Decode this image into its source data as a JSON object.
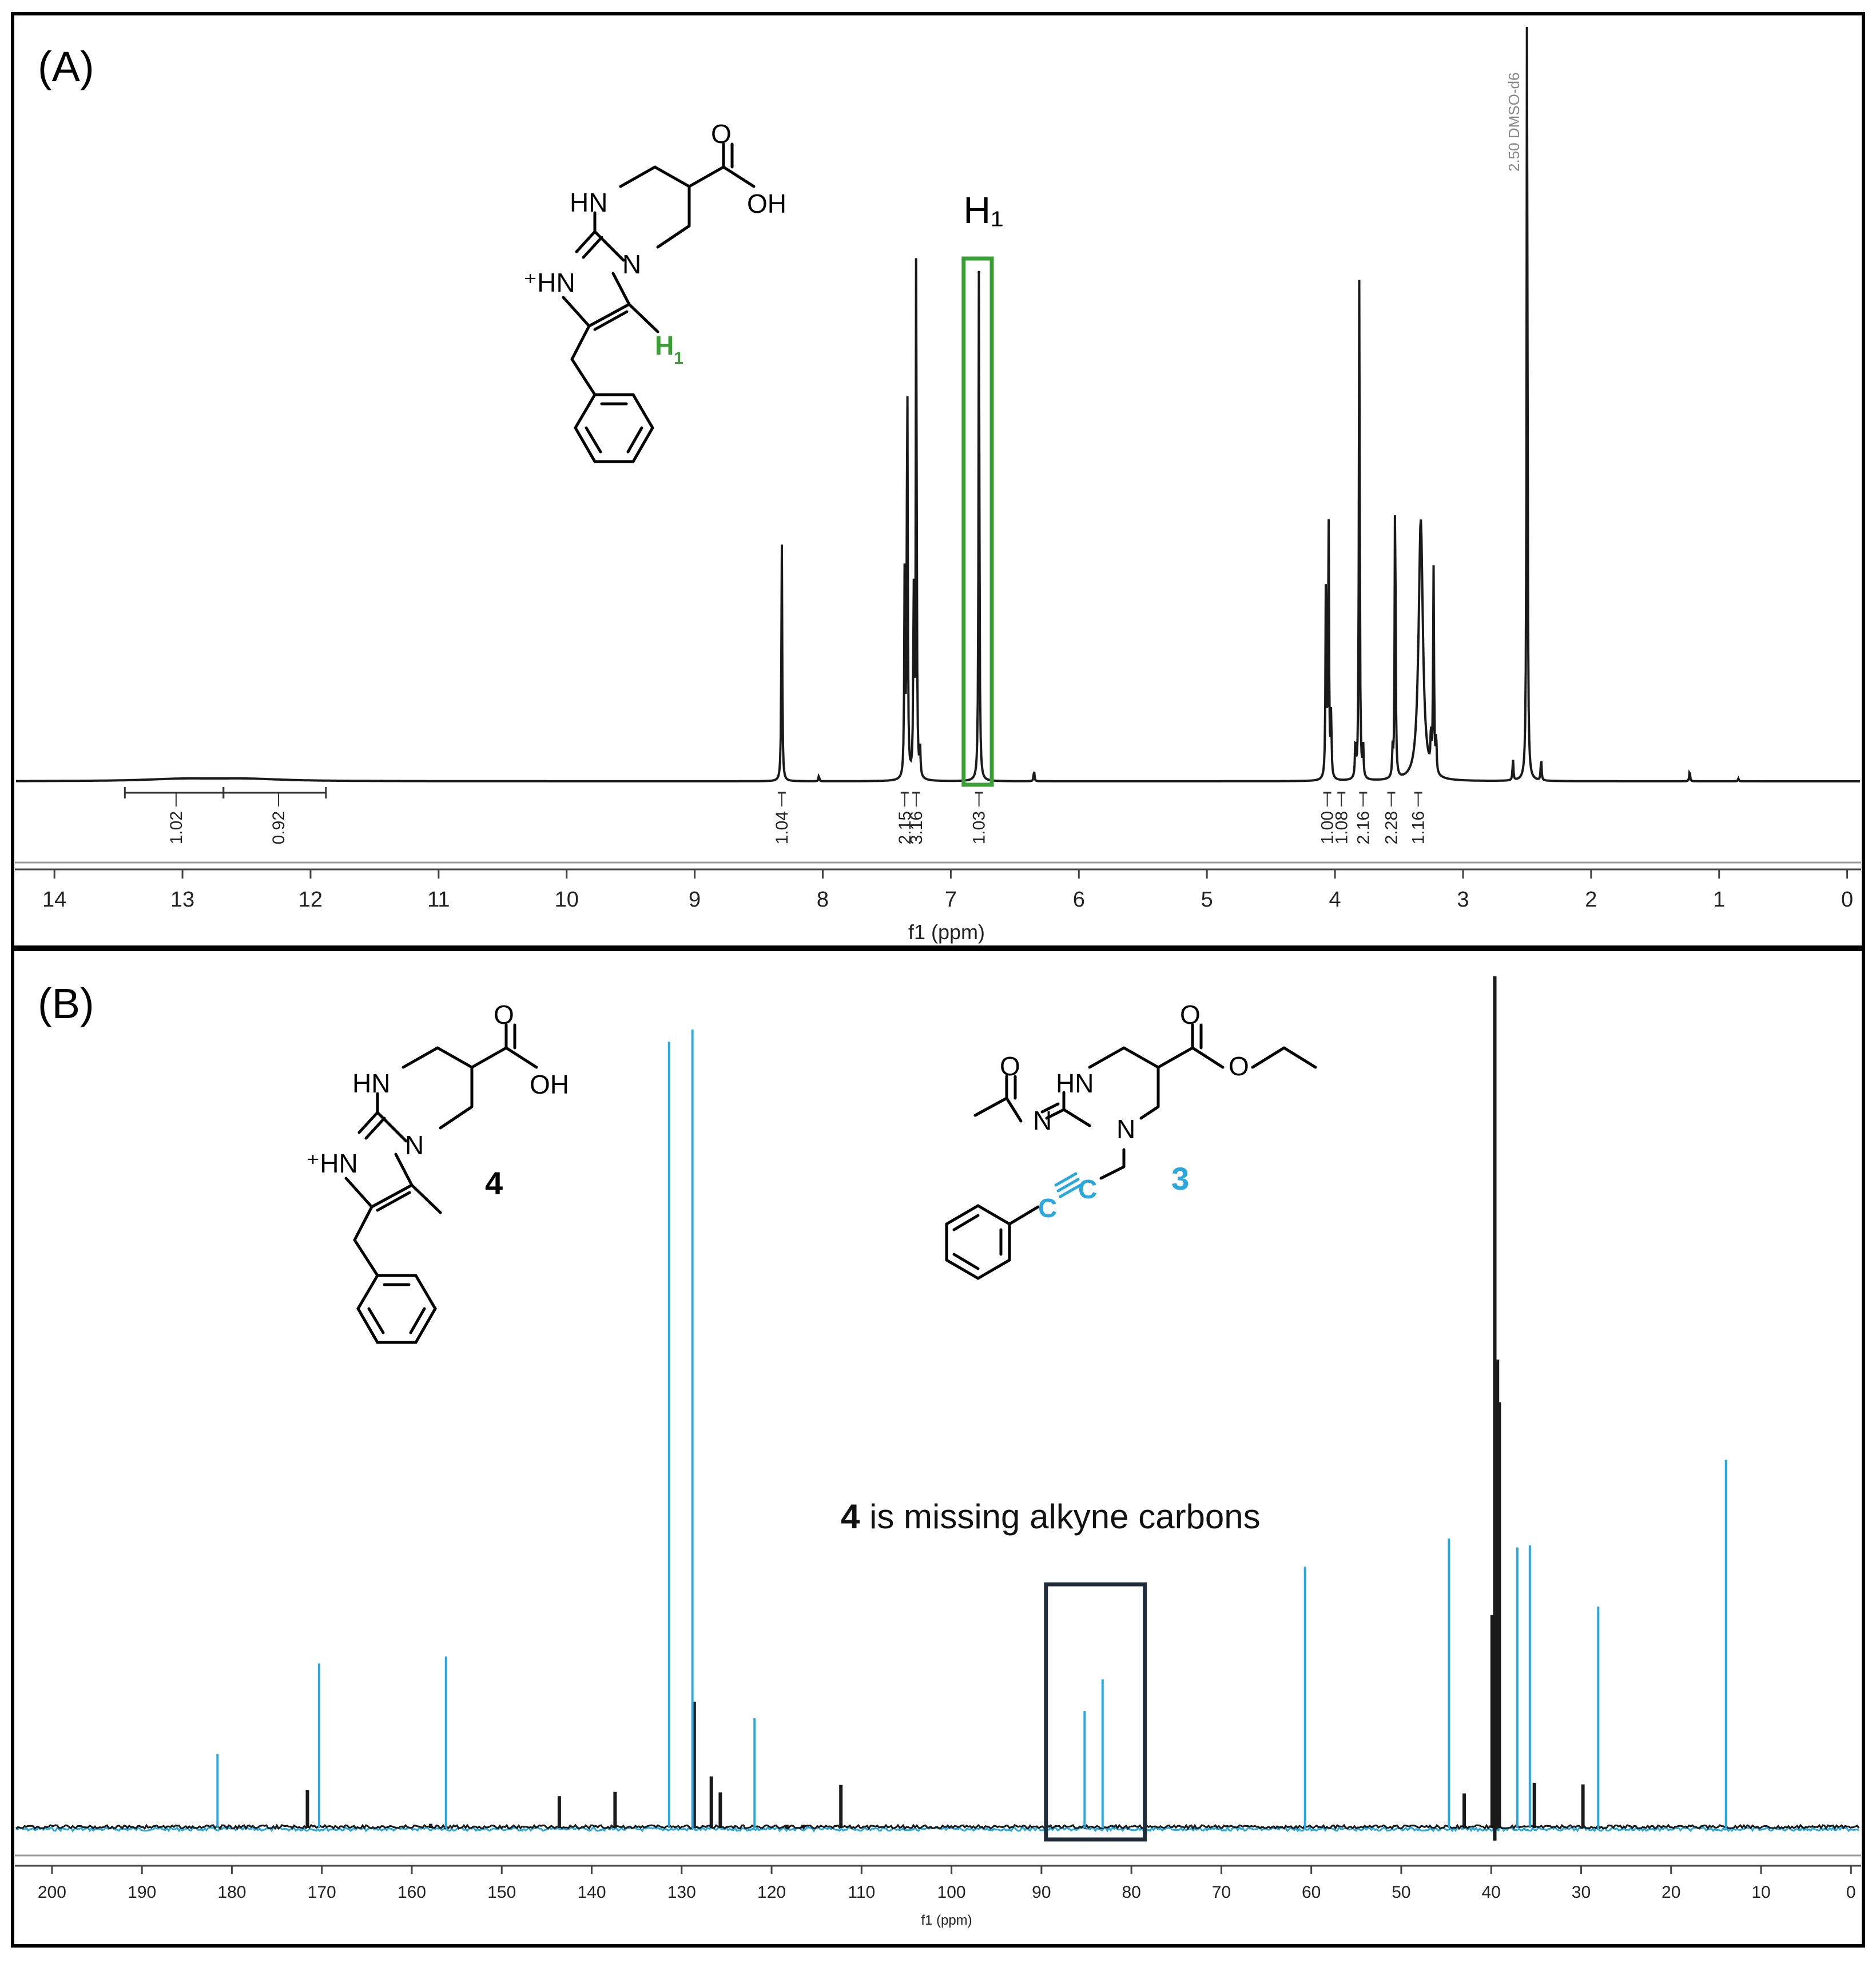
{
  "figure": {
    "panel_a_label": "(A)",
    "panel_b_label": "(B)"
  },
  "colors": {
    "spectrum_black": "#1a1a1a",
    "compound3_blue": "#29a8e0",
    "highlight_green": "#3aa035",
    "box_dark": "#1f2d3a",
    "frame": "#000000"
  },
  "chart_data": [
    {
      "type": "line",
      "id": "A",
      "xlabel": "f1 (ppm)",
      "xlim": [
        14.3,
        -0.1
      ],
      "reversed": true,
      "ticks": [
        "14",
        "13",
        "12",
        "11",
        "10",
        "9",
        "8",
        "7",
        "6",
        "5",
        "4",
        "3",
        "2",
        "1",
        "0"
      ],
      "solvent_label": "2.50 DMSO-d6",
      "peaks": [
        {
          "x": 13.0,
          "y": 0.004,
          "w": 0.35
        },
        {
          "x": 12.5,
          "y": 0.004,
          "w": 0.35
        },
        {
          "x": 8.32,
          "y": 0.45
        },
        {
          "x": 8.03,
          "y": 0.01
        },
        {
          "x": 7.36,
          "y": 0.4
        },
        {
          "x": 7.34,
          "y": 0.8
        },
        {
          "x": 7.29,
          "y": 0.35
        },
        {
          "x": 7.27,
          "y": 1.02
        },
        {
          "x": 7.24,
          "y": 0.05
        },
        {
          "x": 6.78,
          "y": 0.97
        },
        {
          "x": 6.35,
          "y": 0.02
        },
        {
          "x": 4.07,
          "y": 0.4
        },
        {
          "x": 4.05,
          "y": 0.5
        },
        {
          "x": 4.03,
          "y": 0.12
        },
        {
          "x": 3.84,
          "y": 0.07
        },
        {
          "x": 3.81,
          "y": 0.95
        },
        {
          "x": 3.78,
          "y": 0.06
        },
        {
          "x": 3.55,
          "y": 0.05
        },
        {
          "x": 3.53,
          "y": 0.56
        },
        {
          "x": 3.33,
          "y": 0.49,
          "w": 0.02
        },
        {
          "x": 3.25,
          "y": 0.07
        },
        {
          "x": 3.23,
          "y": 0.38
        },
        {
          "x": 3.21,
          "y": 0.07
        },
        {
          "x": 2.61,
          "y": 0.04
        },
        {
          "x": 2.5,
          "y": 1.5
        },
        {
          "x": 2.39,
          "y": 0.04
        },
        {
          "x": 1.23,
          "y": 0.02
        },
        {
          "x": 0.85,
          "y": 0.005
        }
      ],
      "integrals": [
        {
          "label": "1.02",
          "at": 13.05,
          "from": 13.45,
          "to": 12.68
        },
        {
          "label": "0.92",
          "at": 12.25,
          "from": 12.68,
          "to": 11.88
        },
        {
          "label": "1.04",
          "at": 8.32
        },
        {
          "label": "2.15",
          "at": 7.36
        },
        {
          "label": "3.16",
          "at": 7.27
        },
        {
          "label": "1.03",
          "at": 6.78
        },
        {
          "label": "1.00",
          "at": 4.06
        },
        {
          "label": "1.08",
          "at": 3.95
        },
        {
          "label": "2.16",
          "at": 3.78
        },
        {
          "label": "2.28",
          "at": 3.56
        },
        {
          "label": "1.16",
          "at": 3.35
        }
      ],
      "highlight": {
        "label": "H₁",
        "from": 6.9,
        "to": 6.68
      }
    },
    {
      "type": "line",
      "id": "B",
      "xlabel": "f1 (ppm)",
      "xlim": [
        204,
        -1
      ],
      "reversed": true,
      "ticks": [
        "200",
        "190",
        "180",
        "170",
        "160",
        "150",
        "140",
        "130",
        "120",
        "110",
        "100",
        "90",
        "80",
        "70",
        "60",
        "50",
        "40",
        "30",
        "20",
        "10",
        "0"
      ],
      "series": [
        {
          "name": "4",
          "color": "#1a1a1a",
          "peaks": [
            {
              "x": 171.6,
              "y": 0.071
            },
            {
              "x": 157.9,
              "y": 0.008
            },
            {
              "x": 143.6,
              "y": 0.06
            },
            {
              "x": 137.4,
              "y": 0.068
            },
            {
              "x": 128.6,
              "y": 0.237
            },
            {
              "x": 126.7,
              "y": 0.097
            },
            {
              "x": 125.7,
              "y": 0.067
            },
            {
              "x": 112.3,
              "y": 0.081
            },
            {
              "x": 118.3,
              "y": 0.006
            },
            {
              "x": 116.5,
              "y": 0.006
            },
            {
              "x": 43.0,
              "y": 0.065
            },
            {
              "x": 39.6,
              "y": 1.6
            },
            {
              "x": 39.3,
              "y": 0.88
            },
            {
              "x": 39.1,
              "y": 0.8
            },
            {
              "x": 39.9,
              "y": 0.4
            },
            {
              "x": 35.2,
              "y": 0.085
            },
            {
              "x": 29.8,
              "y": 0.082
            }
          ]
        },
        {
          "name": "3",
          "color": "#29a8e0",
          "peaks": [
            {
              "x": 181.6,
              "y": 0.139
            },
            {
              "x": 170.3,
              "y": 0.309
            },
            {
              "x": 156.2,
              "y": 0.322
            },
            {
              "x": 131.4,
              "y": 1.477
            },
            {
              "x": 128.8,
              "y": 1.5
            },
            {
              "x": 121.9,
              "y": 0.206
            },
            {
              "x": 85.2,
              "y": 0.22
            },
            {
              "x": 83.2,
              "y": 0.279
            },
            {
              "x": 60.7,
              "y": 0.491
            },
            {
              "x": 44.7,
              "y": 0.544
            },
            {
              "x": 37.1,
              "y": 0.527
            },
            {
              "x": 35.7,
              "y": 0.531
            },
            {
              "x": 28.1,
              "y": 0.416
            },
            {
              "x": 13.9,
              "y": 0.692
            }
          ]
        }
      ],
      "annotation": {
        "bold": "4",
        "text": " is missing alkyne carbons",
        "box_from": 89.5,
        "box_to": 78.5
      }
    }
  ],
  "structures": {
    "panel_a": {
      "NH": "HN",
      "NH_plus": "⁺HN",
      "N": "N",
      "O": "O",
      "OH": "OH",
      "H": "H",
      "sub": "1"
    },
    "panel_b_4": {
      "NH": "HN",
      "NH_plus": "⁺HN",
      "N": "N",
      "O": "O",
      "OH": "OH",
      "label": "4"
    },
    "panel_b_3": {
      "NH": "HN",
      "N1": "N",
      "N2": "N",
      "O1": "O",
      "O2": "O",
      "O3": "O",
      "C1": "C",
      "C2": "C",
      "label": "3"
    }
  }
}
